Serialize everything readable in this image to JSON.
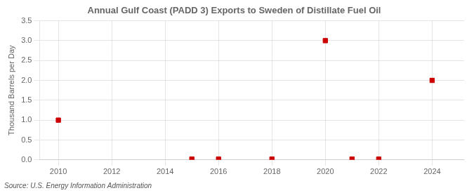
{
  "chart_data": {
    "type": "scatter",
    "title": "Annual Gulf Coast (PADD 3) Exports to Sweden of Distillate Fuel Oil",
    "ylabel": "Thousand Barrels per Day",
    "source": "Source: U.S. Energy Information Administration",
    "x": [
      2010,
      2015,
      2016,
      2018,
      2020,
      2021,
      2022,
      2024
    ],
    "values": [
      1.0,
      0.02,
      0.02,
      0.02,
      3.0,
      0.02,
      0.02,
      2.0
    ],
    "color": "#cc0000",
    "marker": "square",
    "xlim": [
      2009.3,
      2025.2
    ],
    "xticks": [
      2010,
      2012,
      2014,
      2016,
      2018,
      2020,
      2022,
      2024
    ],
    "ylim": [
      0.0,
      3.5
    ],
    "yticks": [
      {
        "value": 0,
        "label": "0.0"
      },
      0.5,
      {
        "value": 1,
        "label": "1.0"
      },
      1.5,
      {
        "value": 2,
        "label": "2.0"
      },
      2.5,
      {
        "value": 3,
        "label": "3.0"
      },
      3.5
    ],
    "grid": true
  }
}
